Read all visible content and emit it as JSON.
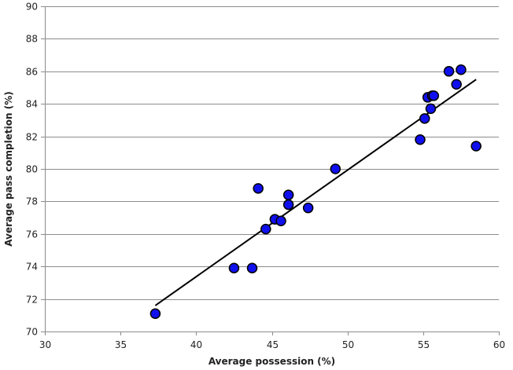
{
  "chart_data": {
    "type": "scatter",
    "title": "",
    "xlabel": "Average possession (%)",
    "ylabel": "Average pass completion (%)",
    "xlim": [
      30,
      60
    ],
    "ylim": [
      70,
      90
    ],
    "xticks": [
      30,
      35,
      40,
      45,
      50,
      55,
      60
    ],
    "yticks": [
      70,
      72,
      74,
      76,
      78,
      80,
      82,
      84,
      86,
      88,
      90
    ],
    "grid": "horizontal",
    "legend": "none",
    "colors": {
      "marker_fill": "#1010ee",
      "marker_edge": "#000000",
      "trendline": "#000000",
      "gridline": "#8c8c8c",
      "axis": "#8c8c8c"
    },
    "series": [
      {
        "x": [
          37.3,
          42.5,
          43.7,
          44.1,
          44.6,
          45.2,
          45.6,
          46.1,
          46.1,
          47.4,
          49.2,
          54.8,
          55.1,
          55.3,
          55.5,
          55.6,
          55.7,
          56.7,
          57.2,
          57.5,
          58.5
        ],
        "y": [
          71.1,
          73.9,
          73.9,
          78.8,
          76.3,
          76.9,
          76.8,
          77.8,
          78.4,
          77.6,
          80.0,
          81.8,
          83.1,
          84.4,
          83.7,
          84.5,
          84.5,
          86.0,
          85.2,
          86.1,
          81.4
        ]
      }
    ],
    "trendline": {
      "type": "linear",
      "x": [
        37.3,
        58.5
      ],
      "y": [
        71.6,
        85.5
      ]
    }
  }
}
